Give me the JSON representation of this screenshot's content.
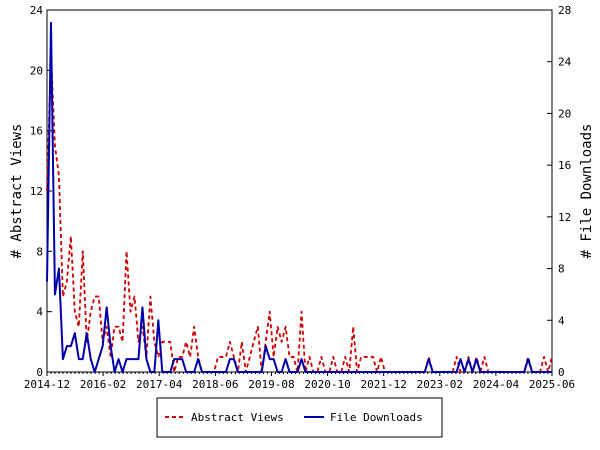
{
  "chart_data": {
    "type": "line",
    "ylabel_left": "# Abstract Views",
    "ylabel_right": "# File Downloads",
    "ylim_left": [
      0,
      24
    ],
    "ylim_right": [
      0,
      28
    ],
    "y_ticks_left": [
      "0",
      "4",
      "8",
      "12",
      "16",
      "20",
      "24"
    ],
    "y_ticks_right": [
      "0",
      "4",
      "8",
      "12",
      "16",
      "20",
      "24",
      "28"
    ],
    "x_ticks": [
      "2014-12",
      "2016-02",
      "2017-04",
      "2018-06",
      "2019-08",
      "2020-10",
      "2021-12",
      "2023-02",
      "2024-04",
      "2025-06"
    ],
    "grid": false,
    "legend_position": "bottom-center",
    "series": [
      {
        "name": "Abstract Views",
        "axis": "left",
        "color": "#cc0000",
        "style": "dashed",
        "values": [
          12,
          21,
          15,
          13,
          5,
          6,
          9,
          4,
          3,
          8,
          2,
          4,
          5,
          5,
          2,
          3,
          1,
          3,
          3,
          2,
          8,
          4,
          5,
          2,
          3,
          1,
          5,
          2,
          1,
          2,
          2,
          2,
          0,
          1,
          1,
          2,
          1,
          3,
          1,
          0,
          0,
          0,
          0,
          1,
          1,
          1,
          2,
          1,
          0,
          2,
          0,
          1,
          2,
          3,
          0,
          2,
          4,
          1,
          3,
          2,
          3,
          1,
          1,
          0,
          4,
          0,
          1,
          0,
          0,
          1,
          0,
          0,
          1,
          0,
          0,
          1,
          0,
          3,
          0,
          1,
          1,
          1,
          1,
          0,
          1,
          0,
          0,
          0,
          0,
          0,
          0,
          0,
          0,
          0,
          0,
          0,
          1,
          0,
          0,
          0,
          0,
          0,
          0,
          1,
          0,
          0,
          1,
          0,
          1,
          0,
          1,
          0,
          0,
          0,
          0,
          0,
          0,
          0,
          0,
          0,
          0,
          1,
          0,
          0,
          0,
          1,
          0,
          1
        ]
      },
      {
        "name": "File Downloads",
        "axis": "right",
        "color": "#0000aa",
        "style": "solid",
        "values": [
          7,
          27,
          6,
          8,
          1,
          2,
          2,
          3,
          1,
          1,
          3,
          1,
          0,
          1,
          2,
          5,
          2,
          0,
          1,
          0,
          1,
          1,
          1,
          1,
          5,
          1,
          0,
          0,
          4,
          0,
          0,
          0,
          1,
          1,
          1,
          0,
          0,
          0,
          1,
          0,
          0,
          0,
          0,
          0,
          0,
          0,
          1,
          1,
          0,
          0,
          0,
          0,
          0,
          0,
          0,
          2,
          1,
          1,
          0,
          0,
          1,
          0,
          0,
          0,
          1,
          0,
          0,
          0,
          0,
          0,
          0,
          0,
          0,
          0,
          0,
          0,
          0,
          0,
          0,
          0,
          0,
          0,
          0,
          0,
          0,
          0,
          0,
          0,
          0,
          0,
          0,
          0,
          0,
          0,
          0,
          0,
          1,
          0,
          0,
          0,
          0,
          0,
          0,
          0,
          1,
          0,
          1,
          0,
          1,
          0,
          0,
          0,
          0,
          0,
          0,
          0,
          0,
          0,
          0,
          0,
          0,
          1,
          0,
          0,
          0,
          0,
          0,
          0
        ]
      }
    ]
  }
}
